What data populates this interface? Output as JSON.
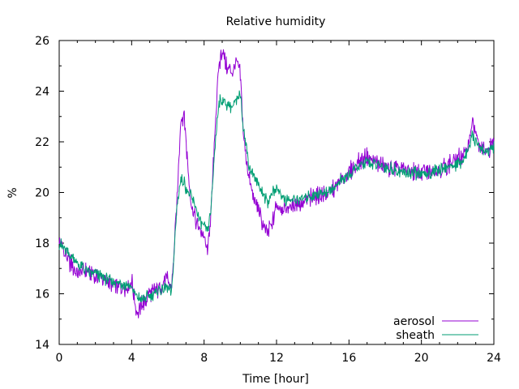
{
  "chart_data": {
    "type": "line",
    "title": "Relative humidity",
    "xlabel": "Time [hour]",
    "ylabel": "%",
    "xlim": [
      0,
      24
    ],
    "ylim": [
      14,
      26
    ],
    "x_ticks": [
      0,
      4,
      8,
      12,
      16,
      20,
      24
    ],
    "y_ticks": [
      14,
      16,
      18,
      20,
      22,
      24,
      26
    ],
    "grid": false,
    "legend_position": "bottom-right",
    "series": [
      {
        "name": "aerosol",
        "color": "#9400d3",
        "x": [
          0,
          0.5,
          1,
          1.5,
          2,
          2.5,
          3,
          3.5,
          4,
          4.3,
          4.6,
          5,
          5.5,
          6,
          6.2,
          6.5,
          6.7,
          6.9,
          7.1,
          7.3,
          7.5,
          7.7,
          8,
          8.2,
          8.4,
          8.6,
          8.8,
          9,
          9.2,
          9.5,
          9.8,
          10,
          10.2,
          10.5,
          10.8,
          11,
          11.5,
          11.8,
          12,
          12.5,
          13,
          14,
          15,
          16,
          16.5,
          17,
          18,
          19,
          20,
          21,
          22,
          22.5,
          22.8,
          23.2,
          23.6,
          24
        ],
        "y": [
          18.0,
          17.3,
          16.8,
          16.9,
          16.7,
          16.6,
          16.3,
          16.2,
          16.5,
          15.2,
          15.6,
          16.0,
          16.2,
          16.6,
          16.1,
          19.5,
          22.8,
          23.1,
          21.0,
          19.5,
          19.0,
          18.6,
          18.2,
          17.6,
          19.5,
          22.5,
          24.8,
          25.7,
          25.0,
          24.7,
          25.1,
          24.6,
          22.0,
          20.5,
          19.6,
          19.3,
          18.3,
          18.9,
          19.5,
          19.3,
          19.5,
          19.8,
          20.0,
          20.8,
          21.2,
          21.4,
          21.0,
          20.9,
          20.8,
          20.9,
          21.3,
          21.6,
          22.8,
          21.8,
          21.5,
          22.1
        ]
      },
      {
        "name": "sheath",
        "color": "#009e73",
        "x": [
          0,
          0.5,
          1,
          1.5,
          2,
          2.5,
          3,
          3.5,
          4,
          4.3,
          4.6,
          5,
          5.5,
          6,
          6.2,
          6.5,
          6.7,
          6.9,
          7.1,
          7.3,
          7.5,
          7.7,
          8,
          8.2,
          8.4,
          8.6,
          8.8,
          9,
          9.2,
          9.5,
          9.8,
          10,
          10.2,
          10.5,
          10.8,
          11,
          11.5,
          11.8,
          12,
          12.5,
          13,
          14,
          15,
          16,
          16.5,
          17,
          18,
          19,
          20,
          21,
          22,
          22.5,
          22.8,
          23.2,
          23.6,
          24
        ],
        "y": [
          18.0,
          17.6,
          17.2,
          16.9,
          16.8,
          16.6,
          16.5,
          16.4,
          16.3,
          15.8,
          15.8,
          15.9,
          16.1,
          16.3,
          16.0,
          19.4,
          20.5,
          20.4,
          20.0,
          19.8,
          19.5,
          19.0,
          18.6,
          18.4,
          19.5,
          21.8,
          23.5,
          23.7,
          23.5,
          23.4,
          23.6,
          24.0,
          22.4,
          21.0,
          20.6,
          20.3,
          19.6,
          20.0,
          20.2,
          19.7,
          19.7,
          19.9,
          20.1,
          20.7,
          21.0,
          21.2,
          21.0,
          20.8,
          20.7,
          20.9,
          21.1,
          21.5,
          22.2,
          21.8,
          21.6,
          21.8
        ]
      }
    ]
  }
}
